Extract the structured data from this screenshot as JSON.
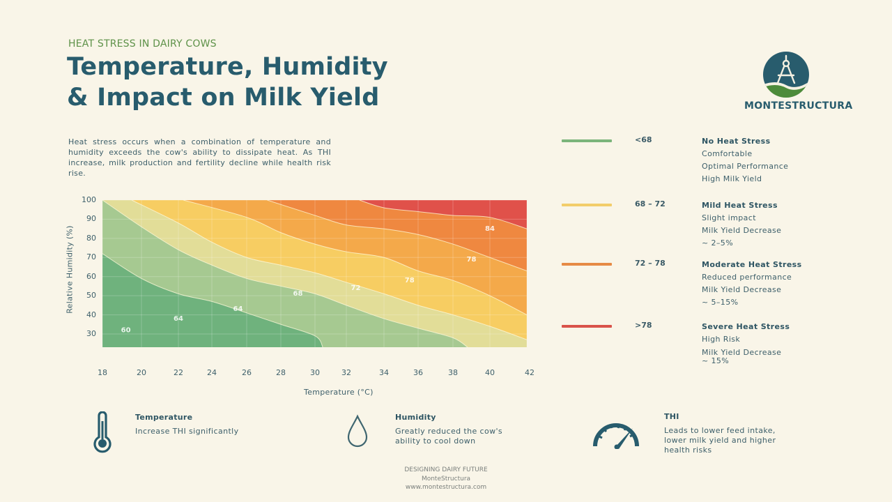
{
  "header": {
    "kicker": "HEAT STRESS IN DAIRY COWS",
    "title_line1": "Temperature, Humidity",
    "title_line2": "& Impact on Milk Yield",
    "intro": "Heat stress occurs when a combination of temperature and humidity exceeds the cow's ability to dissipate heat. As THI increase, milk production and fertility decline while health risk rise."
  },
  "logo": {
    "name": "MONTESTRUCTURA",
    "icon": "compass-icon"
  },
  "legend": [
    {
      "range": "<68",
      "title": "No Heat Stress",
      "lines": [
        "Comfortable",
        "Optimal Performance",
        "High Milk Yield"
      ],
      "color": "#7bb47a"
    },
    {
      "range": "68 – 72",
      "title": "Mild Heat Stress",
      "lines": [
        "Slight impact",
        "Milk Yield Decrease",
        "~ 2–5%"
      ],
      "color": "#f2cd6a"
    },
    {
      "range": "72 – 78",
      "title": "Moderate Heat Stress",
      "lines": [
        "Reduced performance",
        "Milk Yield Decrease",
        "~ 5–15%"
      ],
      "color": "#e68a45"
    },
    {
      "range": ">78",
      "title": "Severe Heat Stress",
      "lines": [
        "High Risk",
        "Milk Yield Decrease",
        "~ 15%"
      ],
      "color": "#d9534a"
    }
  ],
  "chart_data": {
    "type": "heatmap",
    "subtype": "contour",
    "title": "",
    "xlabel": "Temperature (°C)",
    "ylabel": "Relative Humidity (%)",
    "x_ticks": [
      18,
      20,
      22,
      24,
      26,
      28,
      30,
      32,
      34,
      36,
      38,
      40,
      42
    ],
    "y_ticks": [
      100,
      90,
      80,
      70,
      60,
      50,
      40,
      30
    ],
    "xlim": [
      18,
      42
    ],
    "ylim": [
      23,
      100
    ],
    "grid": true,
    "bands": [
      {
        "name": "band-1",
        "color": "#6fb27d"
      },
      {
        "name": "band-2",
        "color": "#a6c991"
      },
      {
        "name": "band-3",
        "color": "#e2dd98"
      },
      {
        "name": "band-4",
        "color": "#f7cd62"
      },
      {
        "name": "band-5",
        "color": "#f4a94a"
      },
      {
        "name": "band-6",
        "color": "#ef8840"
      },
      {
        "name": "band-7",
        "color": "#e0514a"
      }
    ],
    "contours": [
      {
        "name": "contour-1",
        "points": [
          [
            18,
            72
          ],
          [
            20,
            59
          ],
          [
            22,
            51
          ],
          [
            24,
            47
          ],
          [
            26,
            41
          ],
          [
            28,
            35
          ],
          [
            30,
            29
          ],
          [
            30.5,
            23
          ]
        ]
      },
      {
        "name": "contour-2",
        "points": [
          [
            18,
            100
          ],
          [
            20,
            86
          ],
          [
            22,
            74
          ],
          [
            24,
            66
          ],
          [
            26,
            59
          ],
          [
            28,
            55
          ],
          [
            30,
            51
          ],
          [
            32,
            45
          ],
          [
            34,
            38
          ],
          [
            36,
            33
          ],
          [
            38,
            28
          ],
          [
            38.8,
            23
          ]
        ]
      },
      {
        "name": "contour-3",
        "points": [
          [
            19.5,
            100
          ],
          [
            22,
            88
          ],
          [
            24,
            78
          ],
          [
            26,
            70
          ],
          [
            28,
            66
          ],
          [
            30,
            62
          ],
          [
            32,
            57
          ],
          [
            34,
            51
          ],
          [
            36,
            45
          ],
          [
            38,
            40
          ],
          [
            40,
            34
          ],
          [
            42,
            27
          ]
        ]
      },
      {
        "name": "contour-4",
        "points": [
          [
            22.3,
            100
          ],
          [
            26,
            91
          ],
          [
            28,
            83
          ],
          [
            30,
            77
          ],
          [
            32,
            73
          ],
          [
            34,
            70
          ],
          [
            36,
            63
          ],
          [
            38,
            58
          ],
          [
            40,
            50
          ],
          [
            42,
            40
          ]
        ]
      },
      {
        "name": "contour-5",
        "points": [
          [
            27.2,
            100
          ],
          [
            30,
            92
          ],
          [
            32,
            87
          ],
          [
            34,
            85
          ],
          [
            36,
            82
          ],
          [
            38,
            77
          ],
          [
            40,
            70
          ],
          [
            42,
            63
          ]
        ]
      },
      {
        "name": "contour-6",
        "points": [
          [
            32.7,
            100
          ],
          [
            34,
            96
          ],
          [
            36,
            94
          ],
          [
            38,
            92
          ],
          [
            40,
            91
          ],
          [
            42,
            85
          ]
        ]
      }
    ],
    "labels": [
      {
        "text": "60",
        "x": 19.2,
        "y": 31
      },
      {
        "text": "64",
        "x": 22,
        "y": 37
      },
      {
        "text": "64",
        "x": 25.5,
        "y": 42
      },
      {
        "text": "68",
        "x": 29,
        "y": 50
      },
      {
        "text": "72",
        "x": 32.5,
        "y": 53
      },
      {
        "text": "78",
        "x": 35.5,
        "y": 57
      },
      {
        "text": "78",
        "x": 39,
        "y": 68
      },
      {
        "text": "84",
        "x": 40,
        "y": 84
      }
    ]
  },
  "features": [
    {
      "icon": "thermometer-icon",
      "title": "Temperature",
      "text": [
        "Increase THI significantly"
      ]
    },
    {
      "icon": "droplet-icon",
      "title": "Humidity",
      "text": [
        "Greatly reduced the cow's",
        "ability to cool down"
      ]
    },
    {
      "icon": "gauge-icon",
      "title": "THI",
      "text": [
        "Leads to lower feed intake,",
        "lower milk yield and higher",
        "health risks"
      ]
    }
  ],
  "footer": {
    "line1": "DESIGNING DAIRY FUTURE",
    "line2": "MonteStructura",
    "line3": "www.montestructura.com"
  }
}
